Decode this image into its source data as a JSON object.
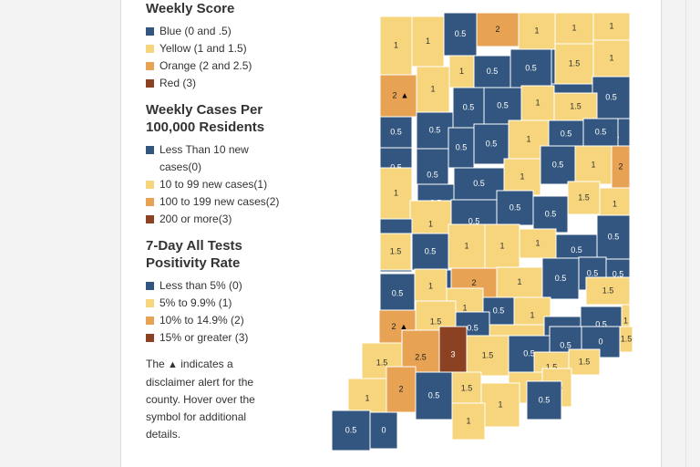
{
  "colors": {
    "blue": "#32567f",
    "yellow": "#f7d57c",
    "orange": "#e7a254",
    "red": "#8b4122"
  },
  "legend": {
    "weekly_score": {
      "title": "Weekly Score",
      "items": [
        {
          "label": "Blue (0 and .5)",
          "color": "#32567f"
        },
        {
          "label": "Yellow (1 and 1.5)",
          "color": "#f7d57c"
        },
        {
          "label": "Orange (2 and 2.5)",
          "color": "#e7a254"
        },
        {
          "label": "Red (3)",
          "color": "#8b4122"
        }
      ]
    },
    "weekly_cases": {
      "title": "Weekly Cases Per 100,000 Residents",
      "items": [
        {
          "label": "Less Than 10 new cases(0)",
          "color": "#32567f"
        },
        {
          "label": "10 to 99 new cases(1)",
          "color": "#f7d57c"
        },
        {
          "label": "100 to 199 new cases(2)",
          "color": "#e7a254"
        },
        {
          "label": "200 or more(3)",
          "color": "#8b4122"
        }
      ]
    },
    "positivity": {
      "title": "7-Day All Tests Positivity Rate",
      "items": [
        {
          "label": "Less than 5% (0)",
          "color": "#32567f"
        },
        {
          "label": "5% to 9.9% (1)",
          "color": "#f7d57c"
        },
        {
          "label": "10% to 14.9% (2)",
          "color": "#e7a254"
        },
        {
          "label": "15% or greater (3)",
          "color": "#8b4122"
        }
      ]
    },
    "note_prefix": "The",
    "note_icon": "warning-triangle-icon",
    "note_suffix": "indicates a disclaimer alert for the county. Hover over the symbol for additional details."
  },
  "map": {
    "counties": [
      {
        "score": "1",
        "level": "yellow",
        "alert": false
      },
      {
        "score": "1",
        "level": "yellow",
        "alert": false
      },
      {
        "score": "0.5",
        "level": "blue",
        "alert": false
      },
      {
        "score": "2",
        "level": "orange",
        "alert": false
      },
      {
        "score": "1",
        "level": "yellow",
        "alert": false
      },
      {
        "score": "1",
        "level": "yellow",
        "alert": false
      },
      {
        "score": "1",
        "level": "yellow",
        "alert": false
      },
      {
        "score": "0.5",
        "level": "blue",
        "alert": false
      },
      {
        "score": "1.5",
        "level": "yellow",
        "alert": false
      },
      {
        "score": "1",
        "level": "yellow",
        "alert": false
      },
      {
        "score": "2",
        "level": "orange",
        "alert": true
      },
      {
        "score": "1",
        "level": "yellow",
        "alert": false
      },
      {
        "score": "1",
        "level": "yellow",
        "alert": false
      },
      {
        "score": "0.5",
        "level": "blue",
        "alert": false
      },
      {
        "score": "0.5",
        "level": "blue",
        "alert": false
      },
      {
        "score": "0.5",
        "level": "blue",
        "alert": false
      },
      {
        "score": "0.5",
        "level": "blue",
        "alert": false
      },
      {
        "score": "0.5",
        "level": "blue",
        "alert": false
      },
      {
        "score": "0.5",
        "level": "blue",
        "alert": false
      },
      {
        "score": "0.5",
        "level": "blue",
        "alert": false
      },
      {
        "score": "0.5",
        "level": "blue",
        "alert": false
      },
      {
        "score": "1",
        "level": "yellow",
        "alert": false
      },
      {
        "score": "1.5",
        "level": "yellow",
        "alert": false
      },
      {
        "score": "0.5",
        "level": "blue",
        "alert": false
      },
      {
        "score": "0.5",
        "level": "blue",
        "alert": false
      },
      {
        "score": "0.5",
        "level": "blue",
        "alert": false
      },
      {
        "score": "0.5",
        "level": "blue",
        "alert": false
      },
      {
        "score": "0.5",
        "level": "blue",
        "alert": false
      },
      {
        "score": "1",
        "level": "yellow",
        "alert": false
      },
      {
        "score": "0.5",
        "level": "blue",
        "alert": false
      },
      {
        "score": "0.5",
        "level": "blue",
        "alert": false
      },
      {
        "score": "1",
        "level": "yellow",
        "alert": false
      },
      {
        "score": "0.5",
        "level": "blue",
        "alert": false
      },
      {
        "score": "0.5",
        "level": "blue",
        "alert": false
      },
      {
        "score": "1",
        "level": "yellow",
        "alert": false
      },
      {
        "score": "0.5",
        "level": "blue",
        "alert": false
      },
      {
        "score": "1",
        "level": "yellow",
        "alert": false
      },
      {
        "score": "2",
        "level": "orange",
        "alert": false
      },
      {
        "score": "1",
        "level": "yellow",
        "alert": false
      },
      {
        "score": "0.5",
        "level": "blue",
        "alert": false
      },
      {
        "score": "0.5",
        "level": "blue",
        "alert": false
      },
      {
        "score": "0.5",
        "level": "blue",
        "alert": false
      },
      {
        "score": "1.5",
        "level": "yellow",
        "alert": false
      },
      {
        "score": "1",
        "level": "yellow",
        "alert": false
      },
      {
        "score": "0.5",
        "level": "blue",
        "alert": false
      },
      {
        "score": "0.5",
        "level": "blue",
        "alert": false
      },
      {
        "score": "1",
        "level": "yellow",
        "alert": false
      },
      {
        "score": "1",
        "level": "yellow",
        "alert": false
      },
      {
        "score": "1",
        "level": "yellow",
        "alert": false
      },
      {
        "score": "0.5",
        "level": "blue",
        "alert": false
      },
      {
        "score": "0.5",
        "level": "blue",
        "alert": false
      },
      {
        "score": "1.5",
        "level": "yellow",
        "alert": false
      },
      {
        "score": "0.5",
        "level": "blue",
        "alert": false
      },
      {
        "score": "2",
        "level": "orange",
        "alert": false
      },
      {
        "score": "1",
        "level": "yellow",
        "alert": false
      },
      {
        "score": "0.5",
        "level": "blue",
        "alert": false
      },
      {
        "score": "0.5",
        "level": "blue",
        "alert": false
      },
      {
        "score": "0.5",
        "level": "blue",
        "alert": false
      },
      {
        "score": "1.5",
        "level": "yellow",
        "alert": false
      },
      {
        "score": "0.5",
        "level": "blue",
        "alert": false
      },
      {
        "score": "1",
        "level": "yellow",
        "alert": false
      },
      {
        "score": "1",
        "level": "yellow",
        "alert": false
      },
      {
        "score": "0.5",
        "level": "blue",
        "alert": false
      },
      {
        "score": "1",
        "level": "yellow",
        "alert": false
      },
      {
        "score": "2",
        "level": "orange",
        "alert": true
      },
      {
        "score": "1.5",
        "level": "yellow",
        "alert": false
      },
      {
        "score": "0.5",
        "level": "blue",
        "alert": false
      },
      {
        "score": "1",
        "level": "yellow",
        "alert": false
      },
      {
        "score": "0.5",
        "level": "blue",
        "alert": false
      },
      {
        "score": "0.5",
        "level": "blue",
        "alert": false
      },
      {
        "score": "1",
        "level": "yellow",
        "alert": false
      },
      {
        "score": "1.5",
        "level": "yellow",
        "alert": false
      },
      {
        "score": "2.5",
        "level": "orange",
        "alert": false
      },
      {
        "score": "3",
        "level": "red",
        "alert": false
      },
      {
        "score": "1.5",
        "level": "yellow",
        "alert": false
      },
      {
        "score": "0.5",
        "level": "blue",
        "alert": false
      },
      {
        "score": "0.5",
        "level": "blue",
        "alert": false
      },
      {
        "score": "0",
        "level": "blue",
        "alert": false
      },
      {
        "score": "1.5",
        "level": "yellow",
        "alert": false
      },
      {
        "score": "1.5",
        "level": "yellow",
        "alert": false
      },
      {
        "score": "1.5",
        "level": "yellow",
        "alert": false
      },
      {
        "score": "1",
        "level": "yellow",
        "alert": false
      },
      {
        "score": "1",
        "level": "yellow",
        "alert": false
      },
      {
        "score": "2",
        "level": "orange",
        "alert": false
      },
      {
        "score": "0.5",
        "level": "blue",
        "alert": false
      },
      {
        "score": "1.5",
        "level": "yellow",
        "alert": false
      },
      {
        "score": "1.5",
        "level": "yellow",
        "alert": false
      },
      {
        "score": "0.5",
        "level": "blue",
        "alert": false
      },
      {
        "score": "1",
        "level": "yellow",
        "alert": false
      },
      {
        "score": "1",
        "level": "yellow",
        "alert": false
      },
      {
        "score": "0.5",
        "level": "blue",
        "alert": false
      },
      {
        "score": "0",
        "level": "blue",
        "alert": false
      }
    ]
  }
}
